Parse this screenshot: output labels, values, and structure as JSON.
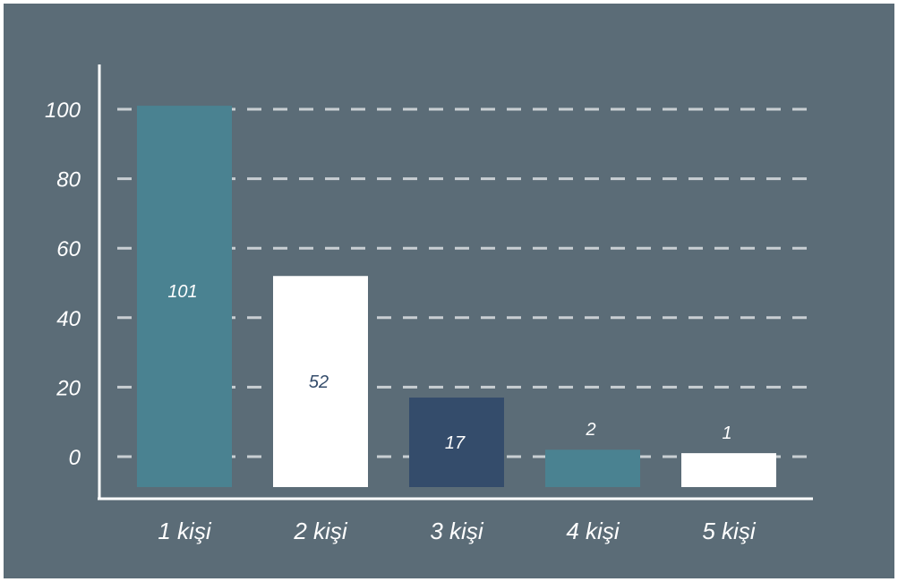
{
  "chart_data": {
    "type": "bar",
    "categories": [
      "1 kişi",
      "2 kişi",
      "3 kişi",
      "4 kişi",
      "5 kişi"
    ],
    "values": [
      101,
      52,
      17,
      2,
      1
    ],
    "data_labels": [
      "101",
      "52",
      "17",
      "2",
      "1"
    ],
    "yticks": [
      "0",
      "20",
      "40",
      "60",
      "80",
      "100"
    ],
    "ylim": [
      0,
      110
    ],
    "grid": true,
    "grid_style": "dashed",
    "colors": {
      "background": "#5b6c77",
      "axis": "#ffffff",
      "grid": "#c9cfd3",
      "bars": [
        "#4a8291",
        "#ffffff",
        "#344c6b",
        "#4a8291",
        "#ffffff"
      ],
      "label_on_dark": "#ffffff",
      "label_on_light": "#344c6b"
    }
  }
}
